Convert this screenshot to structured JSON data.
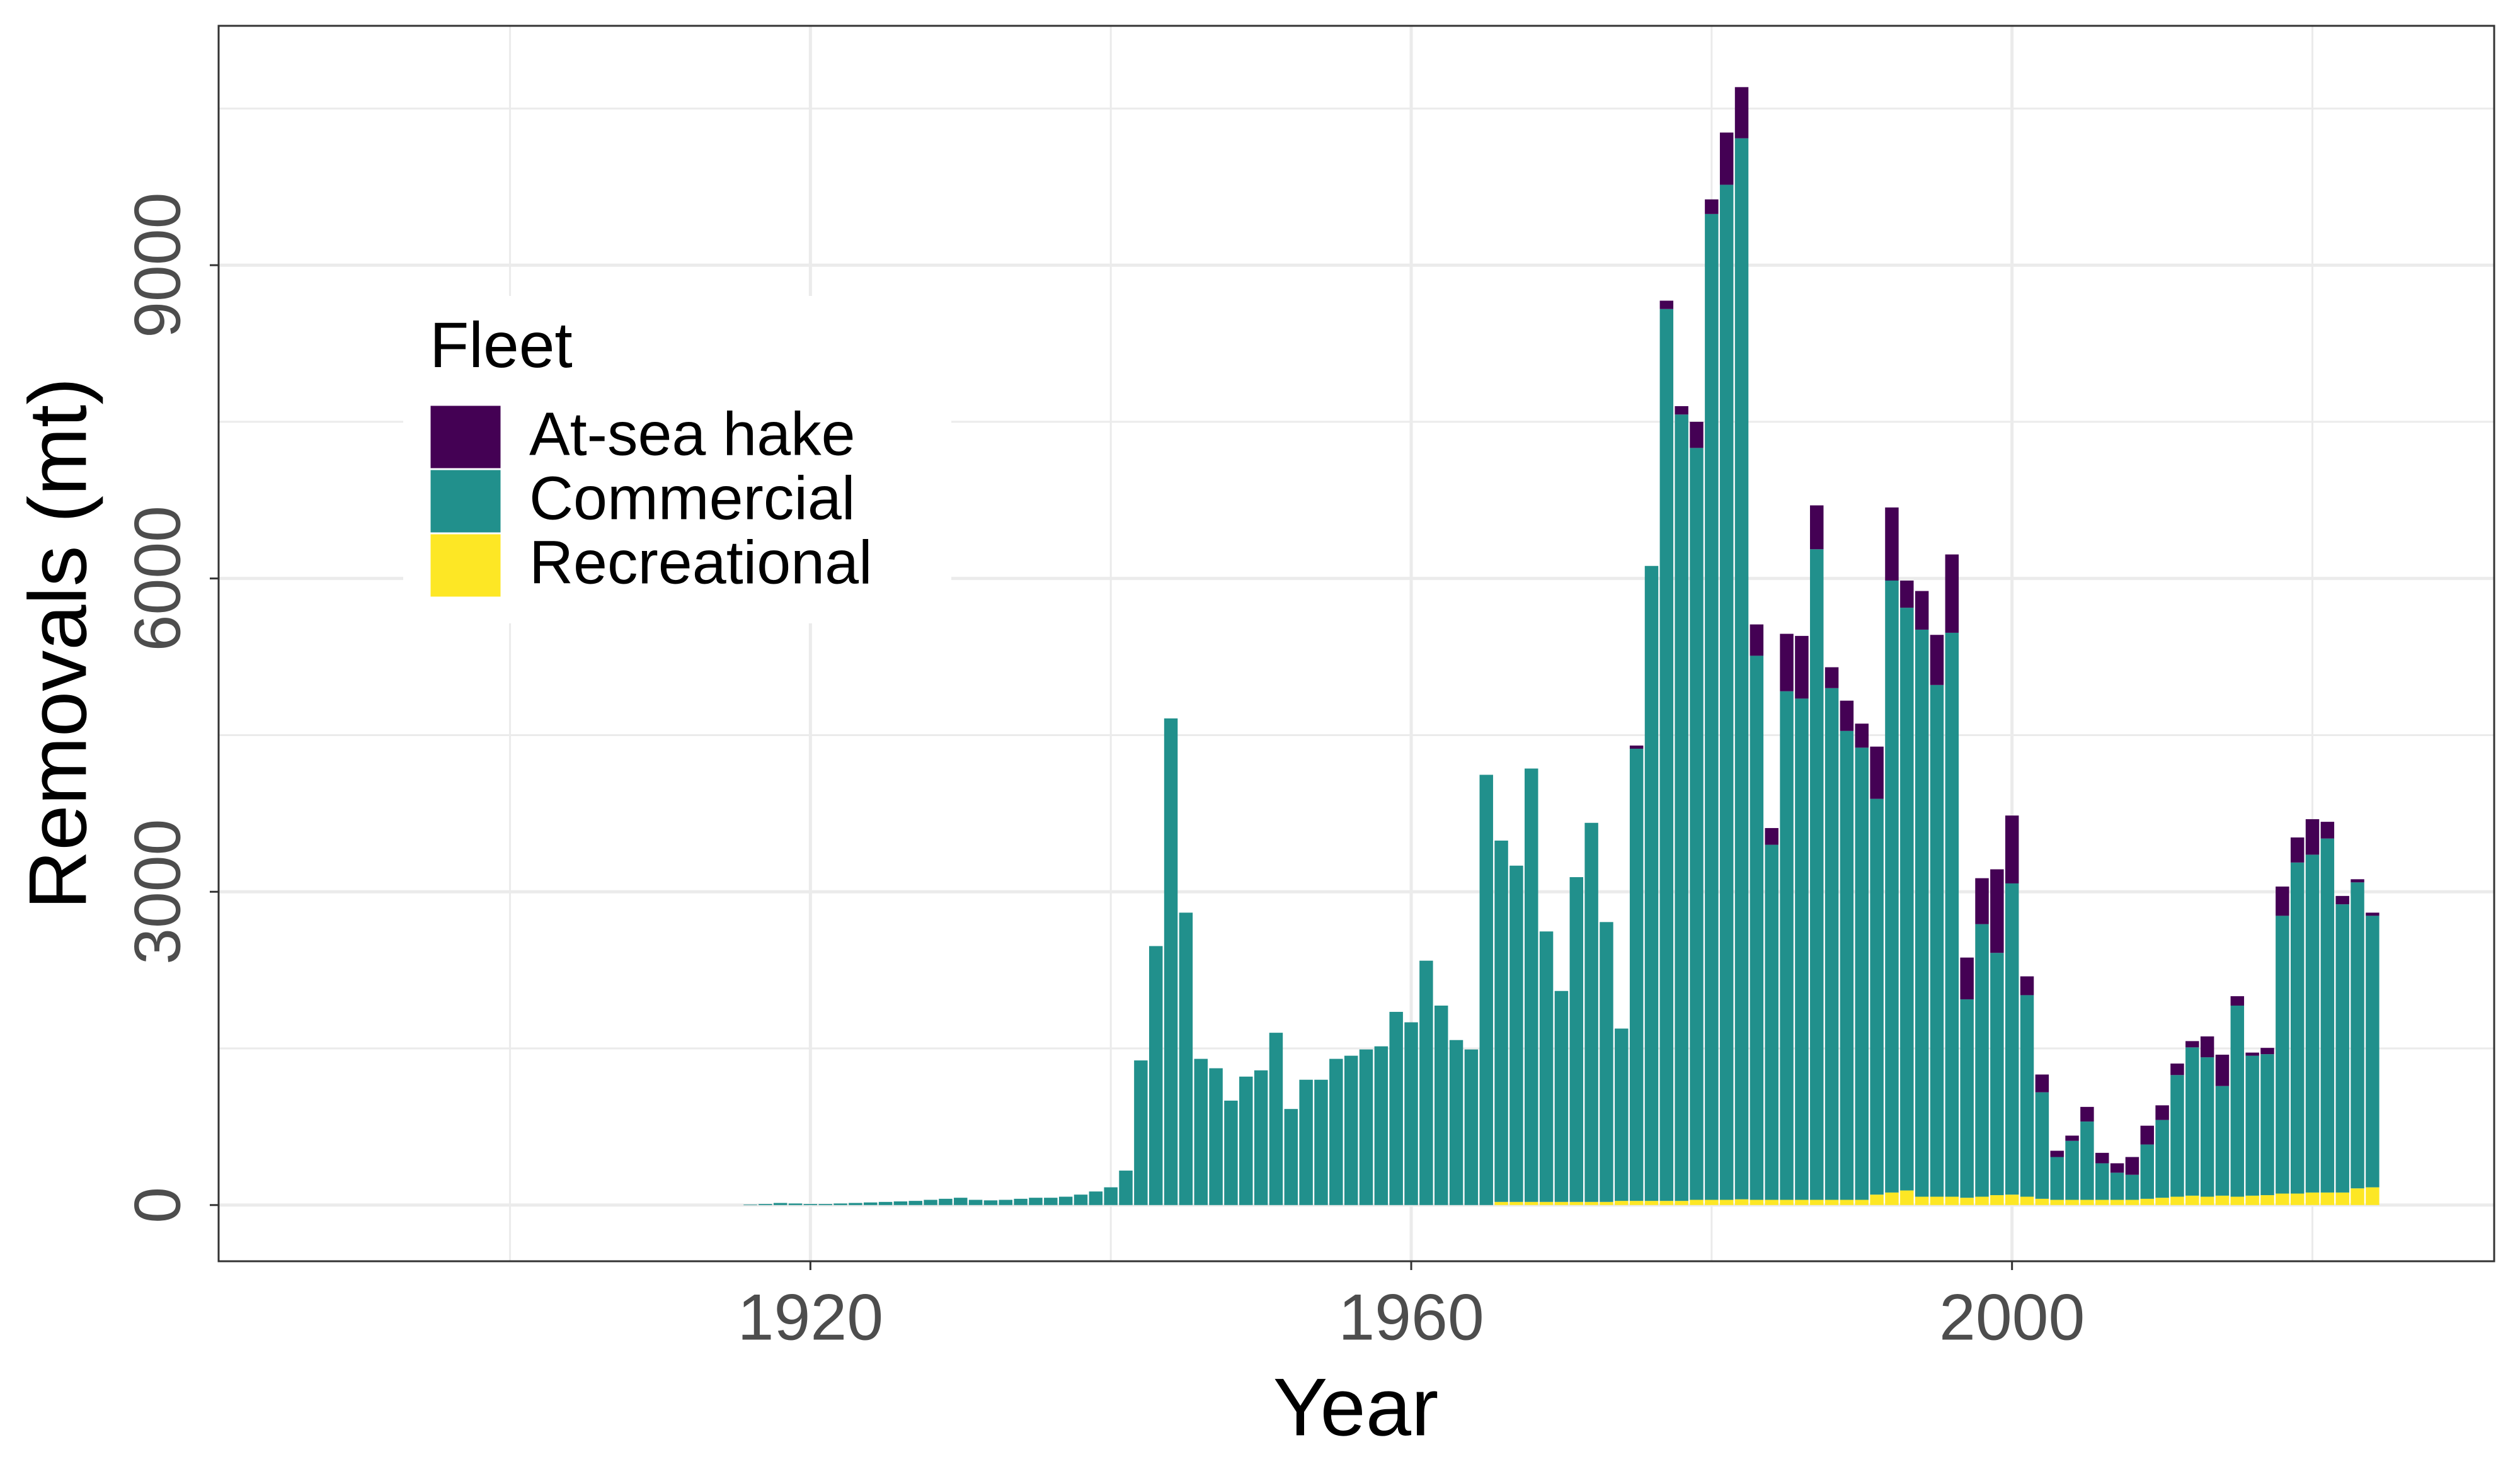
{
  "chart_data": {
    "type": "stacked_bar",
    "x": [
      1916,
      1917,
      1918,
      1919,
      1920,
      1921,
      1922,
      1923,
      1924,
      1925,
      1926,
      1927,
      1928,
      1929,
      1930,
      1931,
      1932,
      1933,
      1934,
      1935,
      1936,
      1937,
      1938,
      1939,
      1940,
      1941,
      1942,
      1943,
      1944,
      1945,
      1946,
      1947,
      1948,
      1949,
      1950,
      1951,
      1952,
      1953,
      1954,
      1955,
      1956,
      1957,
      1958,
      1959,
      1960,
      1961,
      1962,
      1963,
      1964,
      1965,
      1966,
      1967,
      1968,
      1969,
      1970,
      1971,
      1972,
      1973,
      1974,
      1975,
      1976,
      1977,
      1978,
      1979,
      1980,
      1981,
      1982,
      1983,
      1984,
      1985,
      1986,
      1987,
      1988,
      1989,
      1990,
      1991,
      1992,
      1993,
      1994,
      1995,
      1996,
      1997,
      1998,
      1999,
      2000,
      2001,
      2002,
      2003,
      2004,
      2005,
      2006,
      2007,
      2008,
      2009,
      2010,
      2011,
      2012,
      2013,
      2014,
      2015,
      2016,
      2017,
      2018,
      2019,
      2020,
      2021,
      2022,
      2023,
      2024
    ],
    "series": [
      {
        "name": "Recreational",
        "color": "#FDE725",
        "values": [
          0,
          0,
          0,
          0,
          0,
          0,
          0,
          0,
          0,
          0,
          0,
          0,
          0,
          0,
          0,
          0,
          0,
          0,
          0,
          0,
          0,
          0,
          0,
          0,
          0,
          0,
          0,
          0,
          0,
          0,
          0,
          0,
          0,
          0,
          0,
          0,
          0,
          0,
          0,
          0,
          0,
          0,
          0,
          0,
          0,
          0,
          0,
          0,
          0,
          0,
          30,
          30,
          30,
          30,
          30,
          30,
          30,
          30,
          40,
          40,
          40,
          40,
          40,
          50,
          50,
          50,
          55,
          50,
          50,
          50,
          50,
          50,
          50,
          50,
          50,
          100,
          120,
          140,
          80,
          80,
          80,
          70,
          80,
          95,
          100,
          80,
          60,
          50,
          50,
          50,
          50,
          50,
          50,
          60,
          70,
          80,
          90,
          80,
          90,
          80,
          90,
          95,
          110,
          110,
          120,
          120,
          120,
          160,
          170
        ]
      },
      {
        "name": "Commercial",
        "color": "#21908C",
        "values": [
          5,
          10,
          20,
          15,
          10,
          10,
          15,
          20,
          25,
          30,
          35,
          40,
          50,
          60,
          70,
          50,
          45,
          50,
          60,
          70,
          70,
          80,
          100,
          130,
          170,
          330,
          1385,
          2480,
          4660,
          2800,
          1400,
          1310,
          1000,
          1230,
          1290,
          1650,
          920,
          1200,
          1200,
          1400,
          1430,
          1490,
          1520,
          1850,
          1750,
          2340,
          1910,
          1580,
          1490,
          4120,
          3460,
          3220,
          4150,
          2590,
          2020,
          3110,
          3630,
          2680,
          1650,
          4330,
          6080,
          8540,
          7530,
          7200,
          9440,
          9720,
          10160,
          5210,
          3400,
          4870,
          4800,
          6230,
          4900,
          4490,
          4330,
          3790,
          5860,
          5580,
          5430,
          4900,
          5400,
          1900,
          2610,
          2320,
          2980,
          1930,
          1020,
          410,
          565,
          750,
          350,
          260,
          240,
          520,
          745,
          1165,
          1420,
          1335,
          1050,
          1830,
          1340,
          1350,
          2660,
          3170,
          3235,
          3390,
          2760,
          2930,
          2600
        ]
      },
      {
        "name": "At-sea hake",
        "color": "#440154",
        "values": [
          0,
          0,
          0,
          0,
          0,
          0,
          0,
          0,
          0,
          0,
          0,
          0,
          0,
          0,
          0,
          0,
          0,
          0,
          0,
          0,
          0,
          0,
          0,
          0,
          0,
          0,
          0,
          0,
          0,
          0,
          0,
          0,
          0,
          0,
          0,
          0,
          0,
          0,
          0,
          0,
          0,
          0,
          0,
          0,
          0,
          0,
          0,
          0,
          0,
          0,
          0,
          0,
          0,
          0,
          0,
          0,
          0,
          0,
          0,
          30,
          0,
          80,
          80,
          250,
          140,
          500,
          490,
          300,
          160,
          550,
          600,
          420,
          200,
          290,
          230,
          500,
          700,
          260,
          370,
          480,
          750,
          400,
          440,
          800,
          650,
          180,
          170,
          60,
          50,
          140,
          100,
          90,
          170,
          180,
          140,
          110,
          60,
          200,
          300,
          90,
          30,
          60,
          280,
          240,
          340,
          160,
          80,
          30,
          30
        ]
      }
    ],
    "x_label": "Year",
    "y_label": "Removals (mt)",
    "legend_title": "Fleet",
    "xlim": [
      1880.6,
      2032.1
    ],
    "xticks": [
      1920,
      1960,
      2000
    ],
    "ylim": [
      -538,
      11292
    ],
    "yticks": [
      0,
      3000,
      6000,
      9000
    ],
    "grid": true,
    "legend_position": "upper left"
  }
}
